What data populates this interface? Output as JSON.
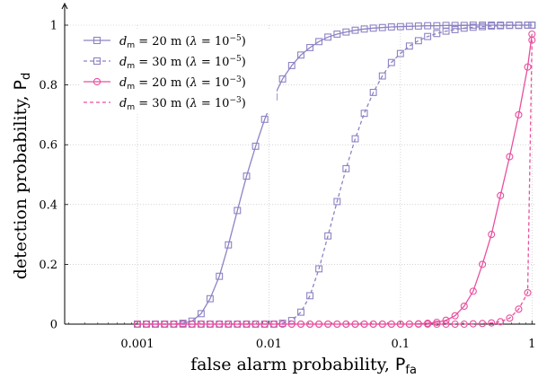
{
  "chart_data": {
    "type": "line",
    "xscale": "log",
    "xlim": [
      0.00028,
      1.06
    ],
    "ylim": [
      0,
      1.0
    ],
    "grid": true,
    "legend_position": "top-left",
    "xlabel": "false alarm probability, P_fa",
    "ylabel": "detection probability, P_d",
    "x_ticks": [
      0.001,
      0.01,
      0.1,
      1
    ],
    "x_tick_labels": [
      "0.001",
      "0.01",
      "0.1",
      "1"
    ],
    "y_ticks": [
      0,
      0.2,
      0.4,
      0.6,
      0.8,
      1
    ],
    "y_tick_labels": [
      "0",
      "0.2",
      "0.4",
      "0.6",
      "0.8",
      "1"
    ],
    "series": [
      {
        "name": "d_m = 20 m (λ = 10^-5)",
        "color": "#8c83c4",
        "dashed": false,
        "marker": "square",
        "x": [
          0.001,
          0.00117,
          0.00137,
          0.00161,
          0.00189,
          0.00222,
          0.0026,
          0.00305,
          0.00357,
          0.0042,
          0.00492,
          0.00576,
          0.00676,
          0.00792,
          0.00928,
          0.0109,
          0.0127,
          0.0149,
          0.0175,
          0.0205,
          0.024,
          0.0281,
          0.033,
          0.0386,
          0.0453,
          0.0531,
          0.0622,
          0.0729,
          0.0854,
          0.1,
          0.117,
          0.137,
          0.161,
          0.189,
          0.222,
          0.26,
          0.305,
          0.357,
          0.42,
          0.492,
          0.576,
          0.676,
          0.792,
          0.928,
          1.0
        ],
        "y": [
          0,
          0,
          0,
          0,
          0,
          0.003,
          0.01,
          0.035,
          0.085,
          0.16,
          0.265,
          0.38,
          0.495,
          0.595,
          0.685,
          0.76,
          0.82,
          0.865,
          0.9,
          0.925,
          0.945,
          0.96,
          0.97,
          0.977,
          0.983,
          0.987,
          0.99,
          0.992,
          0.994,
          0.995,
          0.996,
          0.997,
          0.998,
          0.998,
          0.999,
          0.999,
          0.999,
          1.0,
          1.0,
          1.0,
          1.0,
          1.0,
          1.0,
          1.0,
          1.0
        ]
      },
      {
        "name": "d_m = 30 m (λ = 10^-5)",
        "color": "#8c83c4",
        "dashed": true,
        "marker": "square",
        "x": [
          0.001,
          0.00117,
          0.00137,
          0.00161,
          0.00189,
          0.00222,
          0.0026,
          0.00305,
          0.00357,
          0.0042,
          0.00492,
          0.00576,
          0.00676,
          0.00792,
          0.00928,
          0.0109,
          0.0127,
          0.0149,
          0.0175,
          0.0205,
          0.024,
          0.0281,
          0.033,
          0.0386,
          0.0453,
          0.0531,
          0.0622,
          0.0729,
          0.0854,
          0.1,
          0.117,
          0.137,
          0.161,
          0.189,
          0.222,
          0.26,
          0.305,
          0.357,
          0.42,
          0.492,
          0.576,
          0.676,
          0.792,
          0.928,
          1.0
        ],
        "y": [
          0,
          0,
          0,
          0,
          0,
          0,
          0,
          0,
          0,
          0,
          0,
          0,
          0,
          0,
          0,
          0,
          0.003,
          0.012,
          0.04,
          0.095,
          0.185,
          0.295,
          0.41,
          0.52,
          0.62,
          0.705,
          0.775,
          0.83,
          0.875,
          0.905,
          0.93,
          0.948,
          0.962,
          0.972,
          0.98,
          0.985,
          0.99,
          0.993,
          0.995,
          0.997,
          0.998,
          0.999,
          0.999,
          1.0,
          1.0
        ]
      },
      {
        "name": "d_m = 20 m (λ = 10^-3)",
        "color": "#e94f9f",
        "dashed": false,
        "marker": "circle",
        "x": [
          0.001,
          0.00117,
          0.00137,
          0.00161,
          0.00189,
          0.00222,
          0.0026,
          0.00305,
          0.00357,
          0.0042,
          0.00492,
          0.00576,
          0.00676,
          0.00792,
          0.00928,
          0.0109,
          0.0127,
          0.0149,
          0.0175,
          0.0205,
          0.024,
          0.0281,
          0.033,
          0.0386,
          0.0453,
          0.0531,
          0.0622,
          0.0729,
          0.0854,
          0.1,
          0.117,
          0.137,
          0.161,
          0.189,
          0.222,
          0.26,
          0.305,
          0.357,
          0.42,
          0.492,
          0.576,
          0.676,
          0.792,
          0.928,
          1.0
        ],
        "y": [
          0,
          0,
          0,
          0,
          0,
          0,
          0,
          0,
          0,
          0,
          0,
          0,
          0,
          0,
          0,
          0,
          0,
          0,
          0,
          0,
          0,
          0,
          0,
          0,
          0,
          0,
          0,
          0,
          0,
          0,
          0,
          0.001,
          0.003,
          0.006,
          0.013,
          0.028,
          0.06,
          0.11,
          0.2,
          0.3,
          0.43,
          0.56,
          0.7,
          0.86,
          0.97
        ]
      },
      {
        "name": "d_m = 30 m (λ = 10^-3)",
        "color": "#e94f9f",
        "dashed": true,
        "marker": "circle",
        "x": [
          0.001,
          0.00117,
          0.00137,
          0.00161,
          0.00189,
          0.00222,
          0.0026,
          0.00305,
          0.00357,
          0.0042,
          0.00492,
          0.00576,
          0.00676,
          0.00792,
          0.00928,
          0.0109,
          0.0127,
          0.0149,
          0.0175,
          0.0205,
          0.024,
          0.0281,
          0.033,
          0.0386,
          0.0453,
          0.0531,
          0.0622,
          0.0729,
          0.0854,
          0.1,
          0.117,
          0.137,
          0.161,
          0.189,
          0.222,
          0.26,
          0.305,
          0.357,
          0.42,
          0.492,
          0.576,
          0.676,
          0.792,
          0.928,
          1.0
        ],
        "y": [
          0,
          0,
          0,
          0,
          0,
          0,
          0,
          0,
          0,
          0,
          0,
          0,
          0,
          0,
          0,
          0,
          0,
          0,
          0,
          0,
          0,
          0,
          0,
          0,
          0,
          0,
          0,
          0,
          0,
          0,
          0,
          0,
          0,
          0,
          0,
          0,
          0,
          0.001,
          0.002,
          0.004,
          0.008,
          0.02,
          0.05,
          0.105,
          0.95
        ]
      }
    ]
  }
}
